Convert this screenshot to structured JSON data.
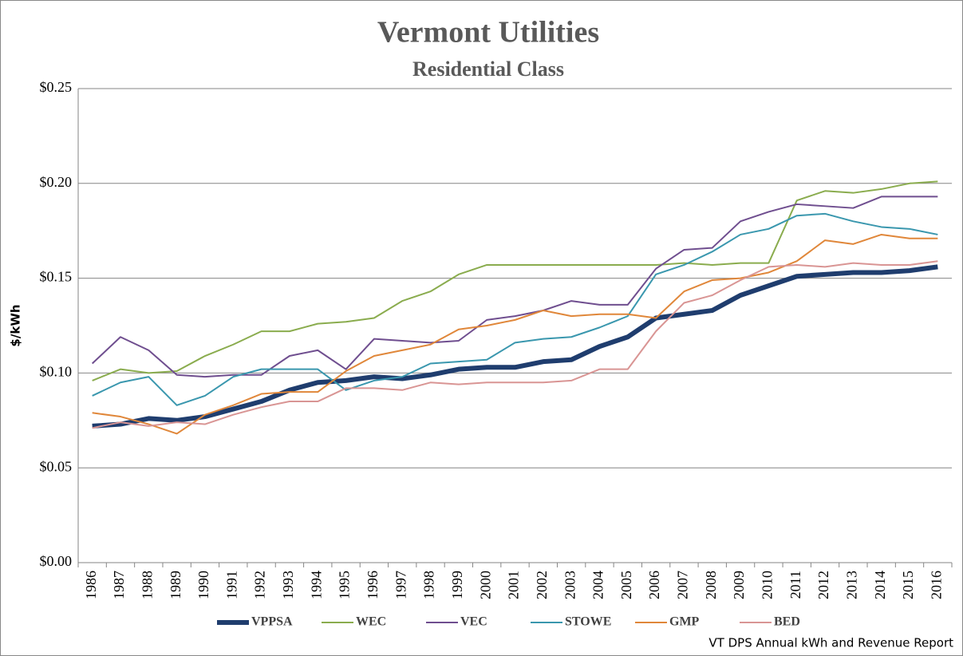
{
  "chart_data": {
    "type": "line",
    "title": "Vermont Utilities",
    "subtitle": "Residential Class",
    "y_label": "$/kWh",
    "source": "VT DPS Annual kWh and Revenue Report",
    "categories": [
      "1986",
      "1987",
      "1988",
      "1989",
      "1990",
      "1991",
      "1992",
      "1993",
      "1994",
      "1995",
      "1996",
      "1997",
      "1998",
      "1999",
      "2000",
      "2001",
      "2002",
      "2003",
      "2004",
      "2005",
      "2006",
      "2007",
      "2008",
      "2009",
      "2010",
      "2011",
      "2012",
      "2013",
      "2014",
      "2015",
      "2016"
    ],
    "ylim": [
      0,
      0.25
    ],
    "yticks": [
      {
        "value": 0,
        "label": "$0.00"
      },
      {
        "value": 0.05,
        "label": "$0.05"
      },
      {
        "value": 0.1,
        "label": "$0.10"
      },
      {
        "value": 0.15,
        "label": "$0.15"
      },
      {
        "value": 0.2,
        "label": "$0.20"
      },
      {
        "value": 0.25,
        "label": "$0.25"
      }
    ],
    "grid": true,
    "legend": "bottom",
    "series": [
      {
        "name": "VPPSA",
        "color": "#1f3d6e",
        "width": 6,
        "values": [
          0.072,
          0.073,
          0.076,
          0.075,
          0.077,
          0.081,
          0.085,
          0.091,
          0.095,
          0.096,
          0.098,
          0.097,
          0.099,
          0.102,
          0.103,
          0.103,
          0.106,
          0.107,
          0.114,
          0.119,
          0.129,
          0.131,
          0.133,
          0.141,
          0.146,
          0.151,
          0.152,
          0.153,
          0.153,
          0.154,
          0.156
        ]
      },
      {
        "name": "WEC",
        "color": "#8aac4e",
        "width": 2,
        "values": [
          0.096,
          0.102,
          0.1,
          0.101,
          0.109,
          0.115,
          0.122,
          0.122,
          0.126,
          0.127,
          0.129,
          0.138,
          0.143,
          0.152,
          0.157,
          0.157,
          0.157,
          0.157,
          0.157,
          0.157,
          0.157,
          0.158,
          0.157,
          0.158,
          0.158,
          0.191,
          0.196,
          0.195,
          0.197,
          0.2,
          0.201
        ]
      },
      {
        "name": "VEC",
        "color": "#6f4e8f",
        "width": 2,
        "values": [
          0.105,
          0.119,
          0.112,
          0.099,
          0.098,
          0.099,
          0.099,
          0.109,
          0.112,
          0.102,
          0.118,
          0.117,
          0.116,
          0.117,
          0.128,
          0.13,
          0.133,
          0.138,
          0.136,
          0.136,
          0.155,
          0.165,
          0.166,
          0.18,
          0.185,
          0.189,
          0.188,
          0.187,
          0.193,
          0.193,
          0.193
        ]
      },
      {
        "name": "STOWE",
        "color": "#3a97ae",
        "width": 2,
        "values": [
          0.088,
          0.095,
          0.098,
          0.083,
          0.088,
          0.098,
          0.102,
          0.102,
          0.102,
          0.091,
          0.096,
          0.098,
          0.105,
          0.106,
          0.107,
          0.116,
          0.118,
          0.119,
          0.124,
          0.13,
          0.152,
          0.157,
          0.164,
          0.173,
          0.176,
          0.183,
          0.184,
          0.18,
          0.177,
          0.176,
          0.173
        ]
      },
      {
        "name": "GMP",
        "color": "#e0873a",
        "width": 2,
        "values": [
          0.079,
          0.077,
          0.073,
          0.068,
          0.078,
          0.083,
          0.089,
          0.09,
          0.09,
          0.101,
          0.109,
          0.112,
          0.115,
          0.123,
          0.125,
          0.128,
          0.133,
          0.13,
          0.131,
          0.131,
          0.129,
          0.143,
          0.149,
          0.15,
          0.153,
          0.159,
          0.17,
          0.168,
          0.173,
          0.171,
          0.171
        ]
      },
      {
        "name": "BED",
        "color": "#d99594",
        "width": 2,
        "values": [
          0.071,
          0.074,
          0.072,
          0.074,
          0.073,
          0.078,
          0.082,
          0.085,
          0.085,
          0.092,
          0.092,
          0.091,
          0.095,
          0.094,
          0.095,
          0.095,
          0.095,
          0.096,
          0.102,
          0.102,
          0.122,
          0.137,
          0.141,
          0.149,
          0.156,
          0.157,
          0.156,
          0.158,
          0.157,
          0.157,
          0.159
        ]
      }
    ]
  }
}
